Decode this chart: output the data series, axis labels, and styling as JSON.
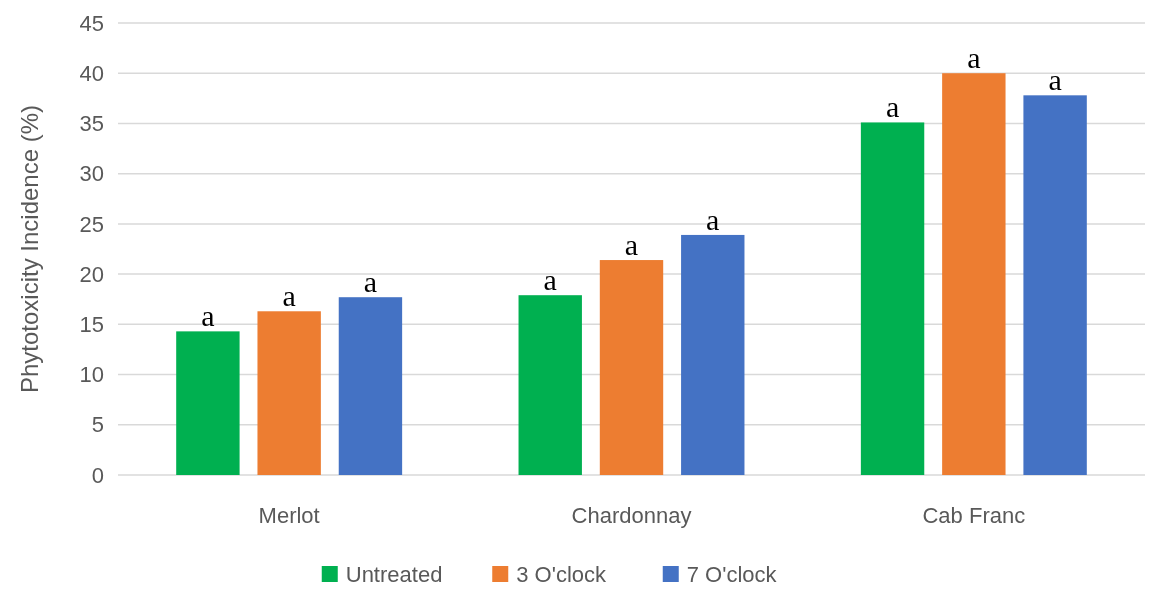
{
  "chart_data": {
    "type": "bar",
    "ylabel": "Phytotoxicity Incidence (%)",
    "categories": [
      "Merlot",
      "Chardonnay",
      "Cab Franc"
    ],
    "series": [
      {
        "name": "Untreated",
        "color": "#00b050",
        "values": [
          14.3,
          17.9,
          35.1
        ],
        "value_labels": [
          "a",
          "a",
          "a"
        ]
      },
      {
        "name": "3 O'clock",
        "color": "#ed7d31",
        "values": [
          16.3,
          21.4,
          40.0
        ],
        "value_labels": [
          "a",
          "a",
          "a"
        ]
      },
      {
        "name": "7 O'clock",
        "color": "#4472c4",
        "values": [
          17.7,
          23.9,
          37.8
        ],
        "value_labels": [
          "a",
          "a",
          "a"
        ]
      }
    ],
    "ylim": [
      0,
      45
    ],
    "yticks": [
      0,
      5,
      10,
      15,
      20,
      25,
      30,
      35,
      40,
      45
    ],
    "grid": "y",
    "legend": "bottom"
  }
}
